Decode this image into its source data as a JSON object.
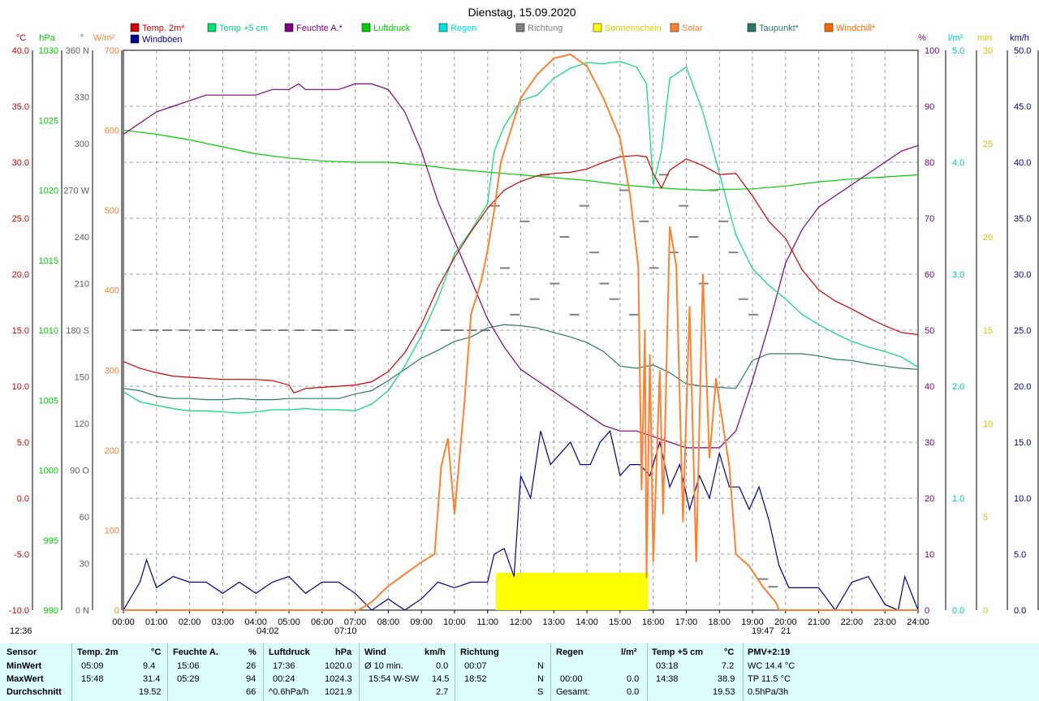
{
  "title": "Dienstag, 15.09.2020",
  "legend": [
    {
      "label": "Temp. 2m*",
      "color": "#d40000"
    },
    {
      "label": "Temp +5 cm",
      "color": "#00e070"
    },
    {
      "label": "Feuchte A.*",
      "color": "#800080"
    },
    {
      "label": "Luftdruck",
      "color": "#00d000"
    },
    {
      "label": "Regen",
      "color": "#00e0e0"
    },
    {
      "label": "Richtung",
      "color": "#808080"
    },
    {
      "label": "Sonnenschein",
      "color": "#ffff00"
    },
    {
      "label": "Solar",
      "color": "#ff8030"
    },
    {
      "label": "Taupunkt*",
      "color": "#2a7a6a"
    },
    {
      "label": "Windchill*",
      "color": "#ff6a00"
    },
    {
      "label": "Windböen",
      "color": "#000090"
    }
  ],
  "axis_units": {
    "temp": "°C",
    "pressure": "hPa",
    "direction": "°",
    "solar": "W/m²",
    "humidity": "%",
    "rain": "l/m²",
    "sun": "min",
    "wind": "km/h"
  },
  "colors": {
    "temp": "#d40000",
    "temp5": "#00e070",
    "humidity": "#800080",
    "pressure": "#00d000",
    "rain": "#00e0e0",
    "direction": "#808080",
    "sun": "#ffff00",
    "solar": "#ff8030",
    "dew": "#2a7a6a",
    "wind": "#000090",
    "grid": "#a0a0a0",
    "footer_bg": "#dcfbfb"
  },
  "chart_data": {
    "type": "line",
    "x_unit": "hour of day",
    "xlim": [
      0,
      24
    ],
    "x_tick_labels": [
      "00:00",
      "01:00",
      "02:00",
      "03:00",
      "04:00",
      "05:00",
      "06:00",
      "07:00",
      "08:00",
      "09:00",
      "10:00",
      "11:00",
      "12:00",
      "13:00",
      "14:00",
      "15:00",
      "16:00",
      "17:00",
      "18:00",
      "19:00",
      "20:00",
      "21:00",
      "22:00",
      "23:00",
      "24:00"
    ],
    "axes": {
      "temp": {
        "ylim": [
          -10,
          40
        ],
        "ticks": [
          "40.0",
          "35.0",
          "30.0",
          "25.0",
          "20.0",
          "15.0",
          "10.0",
          "5.0",
          "0.0",
          "-5.0",
          "-10.0"
        ]
      },
      "pressure": {
        "ylim": [
          990,
          1030
        ],
        "ticks": [
          "1030",
          "1025",
          "1020",
          "1015",
          "1010",
          "1005",
          "1000",
          "995",
          "990"
        ]
      },
      "direction": {
        "ylim": [
          0,
          360
        ],
        "ticks": [
          "360 N",
          "330",
          "300",
          "270 W",
          "240",
          "210",
          "180 S",
          "150",
          "120",
          "90 O",
          "60",
          "30",
          "0 N"
        ]
      },
      "solar": {
        "ylim": [
          0,
          700
        ],
        "ticks": [
          "700",
          "600",
          "500",
          "400",
          "300",
          "200",
          "100",
          "0"
        ]
      },
      "humidity": {
        "ylim": [
          0,
          100
        ],
        "ticks": [
          "100",
          "90",
          "80",
          "70",
          "60",
          "50",
          "40",
          "30",
          "20",
          "10",
          "0"
        ]
      },
      "rain": {
        "ylim": [
          0,
          5
        ],
        "ticks": [
          "5.0",
          "4.0",
          "3.0",
          "2.0",
          "1.0",
          "0.0"
        ]
      },
      "sun": {
        "ylim": [
          0,
          30
        ],
        "ticks": [
          "30",
          "25",
          "20",
          "15",
          "10",
          "5",
          "0"
        ]
      },
      "wind": {
        "ylim": [
          0,
          50
        ],
        "ticks": [
          "50.0",
          "45.0",
          "40.0",
          "35.0",
          "30.0",
          "25.0",
          "20.0",
          "15.0",
          "10.0",
          "5.0",
          "0.0"
        ]
      }
    },
    "series": [
      {
        "name": "Temp. 2m*",
        "axis": "temp",
        "color": "#d40000",
        "x": [
          0,
          0.5,
          1,
          1.5,
          2,
          2.5,
          3,
          3.5,
          4,
          4.5,
          5,
          5.15,
          5.5,
          6,
          6.5,
          7,
          7.5,
          8,
          8.5,
          9,
          9.5,
          10,
          10.5,
          11,
          11.5,
          12,
          12.5,
          13,
          13.5,
          14,
          14.5,
          15,
          15.5,
          15.8,
          16,
          16.25,
          16.5,
          17,
          17.5,
          18,
          18.5,
          19,
          19.5,
          20,
          20.5,
          21,
          21.5,
          22,
          22.5,
          23,
          23.5,
          24
        ],
        "y": [
          12.2,
          11.6,
          11.2,
          10.9,
          10.8,
          10.7,
          10.6,
          10.6,
          10.6,
          10.5,
          10.1,
          9.4,
          9.8,
          9.9,
          10.0,
          10.1,
          10.4,
          11.3,
          13.0,
          15.5,
          18.8,
          21.5,
          23.8,
          25.9,
          27.5,
          28.3,
          28.8,
          29.0,
          29.1,
          29.4,
          30.0,
          30.5,
          30.6,
          30.5,
          29.0,
          27.7,
          29.3,
          30.3,
          29.7,
          28.9,
          29.0,
          27.0,
          24.7,
          23.2,
          20.4,
          18.6,
          17.6,
          16.9,
          16.1,
          15.4,
          14.8,
          14.6
        ]
      },
      {
        "name": "Temp +5 cm",
        "axis": "temp",
        "color": "#00e070",
        "x": [
          0,
          0.5,
          1,
          1.5,
          2,
          2.5,
          3,
          3.5,
          4,
          4.5,
          5,
          5.5,
          6,
          6.5,
          7,
          7.5,
          8,
          8.5,
          9,
          9.5,
          10,
          10.5,
          11,
          11.2,
          11.5,
          12,
          12.5,
          13,
          13.5,
          14,
          14.5,
          15,
          15.5,
          15.8,
          16,
          16.25,
          16.5,
          17,
          17.5,
          18,
          18.5,
          19,
          19.5,
          20,
          20.5,
          21,
          21.5,
          22,
          22.5,
          23,
          23.5,
          24
        ],
        "y": [
          9.5,
          8.6,
          8.3,
          8.0,
          7.8,
          7.8,
          7.7,
          7.6,
          7.7,
          7.9,
          7.9,
          8.0,
          7.9,
          7.9,
          7.8,
          8.4,
          9.6,
          11.8,
          14.5,
          17.8,
          21.8,
          23.9,
          26.3,
          31.0,
          33.2,
          35.5,
          36.0,
          37.5,
          38.4,
          38.9,
          38.8,
          39.0,
          38.5,
          37.0,
          28.0,
          31.0,
          37.5,
          38.5,
          34.5,
          29.0,
          23.5,
          20.5,
          19.0,
          17.8,
          16.4,
          15.5,
          14.7,
          14.0,
          13.5,
          13.1,
          12.6,
          11.7
        ]
      },
      {
        "name": "Feuchte A.*",
        "axis": "humidity",
        "color": "#800080",
        "x": [
          0,
          0.5,
          1,
          1.5,
          2,
          2.5,
          3,
          3.5,
          4,
          4.5,
          5,
          5.29,
          5.5,
          6,
          6.5,
          7,
          7.5,
          8,
          8.5,
          9,
          9.5,
          10,
          10.5,
          11,
          11.5,
          12,
          12.5,
          13,
          13.5,
          14,
          14.5,
          15,
          15.5,
          16,
          16.5,
          17,
          17.5,
          18,
          18.5,
          19,
          19.5,
          20,
          20.5,
          21,
          21.5,
          22,
          22.5,
          23,
          23.5,
          24
        ],
        "y": [
          85,
          87,
          89,
          90,
          91,
          92,
          92,
          92,
          92,
          93,
          93,
          94,
          93,
          93,
          93,
          94,
          94,
          93,
          89,
          82,
          73,
          66,
          59,
          52,
          47,
          43,
          41,
          39,
          37,
          35,
          33,
          32,
          32,
          31,
          30,
          29,
          29,
          29,
          32,
          41,
          51,
          62,
          68,
          72,
          74,
          76,
          78,
          80,
          82,
          83
        ]
      },
      {
        "name": "Luftdruck",
        "axis": "pressure",
        "color": "#00d000",
        "x": [
          0,
          1,
          2,
          3,
          4,
          5,
          6,
          7,
          8,
          9,
          10,
          11,
          12,
          13,
          14,
          15,
          16,
          17,
          17.6,
          18,
          19,
          20,
          21,
          22,
          23,
          24
        ],
        "y": [
          1024.3,
          1024.0,
          1023.6,
          1023.1,
          1022.6,
          1022.3,
          1022.1,
          1022.0,
          1022.0,
          1021.8,
          1021.5,
          1021.3,
          1021.1,
          1020.9,
          1020.7,
          1020.4,
          1020.2,
          1020.05,
          1020.0,
          1020.05,
          1020.1,
          1020.3,
          1020.6,
          1020.8,
          1020.95,
          1021.1
        ]
      },
      {
        "name": "Taupunkt*",
        "axis": "temp",
        "color": "#2a7a6a",
        "x": [
          0,
          0.5,
          1,
          1.5,
          2,
          2.5,
          3,
          3.5,
          4,
          4.5,
          5,
          5.5,
          6,
          6.5,
          7,
          7.5,
          8,
          8.5,
          9,
          9.5,
          10,
          10.5,
          11,
          11.5,
          12,
          12.5,
          13,
          13.5,
          14,
          14.5,
          15,
          15.5,
          16,
          16.5,
          17,
          17.5,
          18,
          18.5,
          19,
          19.5,
          20,
          20.5,
          21,
          21.5,
          22,
          22.5,
          23,
          23.5,
          24
        ],
        "y": [
          9.8,
          9.6,
          9.1,
          8.9,
          8.9,
          8.8,
          8.8,
          8.9,
          8.8,
          8.8,
          8.9,
          8.9,
          8.9,
          8.9,
          9.3,
          9.6,
          10.5,
          11.5,
          12.5,
          13.2,
          14.0,
          14.4,
          15.2,
          15.5,
          15.4,
          15.2,
          14.8,
          14.4,
          13.9,
          13.1,
          11.8,
          11.6,
          11.9,
          11.2,
          10.2,
          10.0,
          9.9,
          9.8,
          12.3,
          12.9,
          12.9,
          12.9,
          12.7,
          12.4,
          12.3,
          12.0,
          11.8,
          11.6,
          11.5
        ]
      },
      {
        "name": "Solar",
        "axis": "solar",
        "color": "#ff8030",
        "x": [
          0,
          7.1,
          7.5,
          8,
          8.5,
          9,
          9.4,
          9.6,
          9.8,
          10.0,
          10.3,
          10.5,
          10.8,
          11.0,
          11.2,
          11.4,
          11.7,
          12,
          12.5,
          13,
          13.5,
          14,
          14.5,
          15,
          15.3,
          15.55,
          15.65,
          15.75,
          15.8,
          15.9,
          16,
          16.2,
          16.3,
          16.5,
          16.7,
          16.9,
          17.1,
          17.3,
          17.5,
          17.7,
          17.9,
          18.0,
          18.3,
          18.5,
          18.9,
          19.3,
          19.7,
          19.8,
          20,
          24
        ],
        "y": [
          0,
          0,
          10,
          30,
          45,
          60,
          70,
          180,
          215,
          120,
          260,
          370,
          410,
          450,
          500,
          560,
          600,
          640,
          670,
          690,
          695,
          680,
          640,
          590,
          520,
          430,
          150,
          350,
          40,
          320,
          60,
          300,
          120,
          480,
          430,
          110,
          380,
          60,
          420,
          190,
          290,
          260,
          180,
          70,
          55,
          30,
          10,
          0,
          0,
          0
        ]
      },
      {
        "name": "Windböen",
        "axis": "wind",
        "color": "#000090",
        "x": [
          0,
          0.5,
          0.7,
          1,
          1.5,
          2,
          2.5,
          3,
          3.5,
          4,
          4.5,
          5,
          5.5,
          6,
          6.5,
          7,
          7.5,
          8,
          8.5,
          9,
          9.5,
          10,
          10.5,
          11,
          11.2,
          11.5,
          11.8,
          12,
          12.3,
          12.6,
          12.9,
          13.2,
          13.5,
          13.8,
          14.1,
          14.4,
          14.7,
          15.0,
          15.3,
          15.6,
          15.9,
          16.2,
          16.5,
          16.8,
          17.1,
          17.4,
          17.7,
          18.0,
          18.3,
          18.6,
          18.9,
          19.2,
          19.5,
          19.8,
          20.1,
          20.5,
          21,
          21.5,
          22,
          22.5,
          23,
          23.4,
          23.6,
          24
        ],
        "y": [
          0,
          2.5,
          4.5,
          2,
          3,
          2.5,
          2.5,
          1.5,
          2.5,
          1.5,
          2.5,
          3,
          1.5,
          2.5,
          2.5,
          1.5,
          0,
          1,
          0,
          1,
          2.5,
          2,
          2.5,
          2.5,
          5,
          5.5,
          3,
          12,
          10,
          16,
          13,
          14,
          15,
          13,
          13,
          15,
          16,
          12,
          13,
          13,
          12,
          15,
          11,
          13,
          9,
          12,
          10,
          14,
          11,
          11,
          9,
          11,
          8,
          4,
          2,
          2,
          2,
          0,
          2.5,
          3,
          0.5,
          0,
          3,
          0
        ]
      },
      {
        "name": "Richtung",
        "axis": "direction",
        "color": "#808080",
        "x": [
          0.3,
          0.8,
          1.2,
          1.7,
          2.2,
          2.7,
          3.2,
          3.7,
          4.2,
          4.7,
          5.2,
          5.7,
          6.2,
          6.7,
          9.6,
          10.0,
          10.4,
          10.8,
          11.1,
          11.4,
          11.7,
          12.0,
          12.3,
          12.6,
          12.9,
          13.2,
          13.5,
          13.8,
          14.1,
          14.4,
          14.7,
          15.0,
          15.3,
          15.6,
          15.9,
          16.2,
          16.5,
          16.8,
          17.1,
          17.4,
          17.7,
          18.0,
          18.3,
          18.6,
          18.9,
          19.2,
          19.5
        ],
        "y": [
          180,
          180,
          180,
          180,
          180,
          180,
          180,
          180,
          180,
          180,
          180,
          180,
          180,
          180,
          180,
          180,
          180,
          180,
          260,
          220,
          190,
          250,
          200,
          280,
          210,
          240,
          190,
          260,
          230,
          210,
          200,
          270,
          190,
          250,
          220,
          280,
          230,
          260,
          240,
          210,
          270,
          250,
          230,
          200,
          190,
          20,
          15
        ]
      },
      {
        "name": "Sonnenschein",
        "axis": "sun",
        "color": "#ffff00",
        "kind": "bar",
        "x": [
          11.25,
          15.85
        ],
        "y": [
          2,
          2
        ]
      }
    ],
    "marker_labels": [
      "12:36",
      "04:02",
      "07:10",
      "19:47",
      "21"
    ]
  },
  "footer": {
    "sensor": {
      "header": "Sensor",
      "rows": [
        "MinWert",
        "MaxWert",
        "Durchschnitt"
      ]
    },
    "temp2m": {
      "header": "Temp. 2m",
      "unit": "°C",
      "times": [
        "05:09",
        "15:48",
        ""
      ],
      "values": [
        "9.4",
        "31.4",
        "19.52"
      ]
    },
    "humidity": {
      "header": "Feuchte A.",
      "unit": "%",
      "times": [
        "15:06",
        "05:29",
        ""
      ],
      "values": [
        "26",
        "94",
        "66"
      ]
    },
    "pressure": {
      "header": "Luftdruck",
      "unit": "hPa",
      "times": [
        "17:36",
        "00:24",
        "^0.6hPa/h"
      ],
      "values": [
        "1020.0",
        "1024.3",
        "1021.9"
      ]
    },
    "wind": {
      "header": "Wind",
      "unit": "km/h",
      "times": [
        "Ø 10 min.",
        "15:54  W-SW",
        ""
      ],
      "values": [
        "0.0",
        "14.5",
        "2.7"
      ]
    },
    "direction": {
      "header": "Richtung",
      "times": [
        "00:07",
        "18:52",
        ""
      ],
      "values": [
        "N",
        "N",
        "S"
      ]
    },
    "rain": {
      "header": "Regen",
      "unit": "l/m²",
      "times": [
        "",
        "00:00",
        "Gesamt:"
      ],
      "values": [
        "",
        "0.0",
        "0.0"
      ]
    },
    "temp5": {
      "header": "Temp +5 cm",
      "unit": "°C",
      "times": [
        "03:18",
        "14:38",
        ""
      ],
      "values": [
        "7.2",
        "38.9",
        "19.53"
      ]
    },
    "pmv": {
      "header": "PMV+2:19",
      "rows": [
        "WC 14.4 °C",
        "TP 11.5 °C",
        "0.5hPa/3h"
      ]
    }
  }
}
